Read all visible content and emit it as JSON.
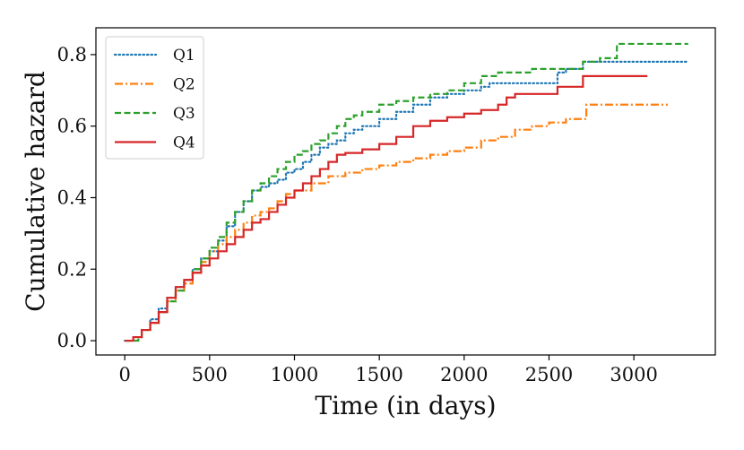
{
  "chart_data": {
    "type": "line",
    "title": "",
    "xlabel": "Time (in days)",
    "ylabel": "Cumulative hazard",
    "xlim": [
      -170,
      3480
    ],
    "ylim": [
      -0.04,
      0.875
    ],
    "xticks": [
      0,
      500,
      1000,
      1500,
      2000,
      2500,
      3000
    ],
    "xtick_labels": [
      "0",
      "500",
      "1000",
      "1500",
      "2000",
      "2500",
      "3000"
    ],
    "yticks": [
      0.0,
      0.2,
      0.4,
      0.6,
      0.8
    ],
    "ytick_labels": [
      "0.0",
      "0.2",
      "0.4",
      "0.6",
      "0.8"
    ],
    "grid": false,
    "legend_position": "top-left",
    "step": true,
    "series": [
      {
        "name": "Q1",
        "color": "#1f77b4",
        "dash": "dotted",
        "x": [
          0,
          50,
          100,
          150,
          200,
          250,
          300,
          350,
          400,
          450,
          500,
          550,
          600,
          650,
          700,
          750,
          800,
          850,
          900,
          950,
          1000,
          1050,
          1100,
          1150,
          1200,
          1250,
          1300,
          1350,
          1400,
          1500,
          1600,
          1700,
          1800,
          1900,
          2000,
          2100,
          2150,
          2300,
          2500,
          2550,
          2600,
          2700,
          3000,
          3320
        ],
        "y": [
          0.0,
          0.01,
          0.03,
          0.06,
          0.09,
          0.12,
          0.15,
          0.17,
          0.2,
          0.23,
          0.25,
          0.28,
          0.32,
          0.36,
          0.39,
          0.42,
          0.43,
          0.44,
          0.45,
          0.47,
          0.48,
          0.5,
          0.52,
          0.54,
          0.55,
          0.56,
          0.58,
          0.59,
          0.6,
          0.62,
          0.64,
          0.66,
          0.68,
          0.69,
          0.7,
          0.71,
          0.72,
          0.72,
          0.72,
          0.75,
          0.76,
          0.78,
          0.78,
          0.78
        ]
      },
      {
        "name": "Q2",
        "color": "#ff7f0e",
        "dash": "dashdot",
        "x": [
          0,
          50,
          100,
          150,
          200,
          250,
          300,
          350,
          400,
          450,
          500,
          550,
          600,
          650,
          700,
          750,
          800,
          850,
          900,
          950,
          1000,
          1100,
          1200,
          1300,
          1400,
          1500,
          1600,
          1700,
          1800,
          1900,
          2000,
          2100,
          2200,
          2300,
          2400,
          2500,
          2600,
          2700,
          2720,
          3000,
          3200
        ],
        "y": [
          0.0,
          0.01,
          0.03,
          0.05,
          0.08,
          0.11,
          0.14,
          0.16,
          0.19,
          0.22,
          0.25,
          0.27,
          0.29,
          0.31,
          0.33,
          0.35,
          0.36,
          0.37,
          0.39,
          0.41,
          0.42,
          0.44,
          0.46,
          0.47,
          0.48,
          0.49,
          0.5,
          0.51,
          0.52,
          0.53,
          0.54,
          0.56,
          0.57,
          0.59,
          0.6,
          0.61,
          0.62,
          0.62,
          0.66,
          0.66,
          0.66
        ]
      },
      {
        "name": "Q3",
        "color": "#2ca02c",
        "dash": "dashed",
        "x": [
          0,
          80,
          100,
          150,
          200,
          250,
          300,
          350,
          400,
          450,
          500,
          550,
          600,
          650,
          700,
          750,
          800,
          850,
          900,
          950,
          1000,
          1050,
          1100,
          1150,
          1200,
          1250,
          1300,
          1350,
          1400,
          1500,
          1600,
          1700,
          1800,
          1900,
          2000,
          2100,
          2200,
          2300,
          2400,
          2500,
          2600,
          2700,
          2800,
          2900,
          3000,
          3320
        ],
        "y": [
          0.0,
          0.01,
          0.03,
          0.05,
          0.08,
          0.11,
          0.14,
          0.17,
          0.2,
          0.23,
          0.26,
          0.29,
          0.33,
          0.36,
          0.39,
          0.42,
          0.44,
          0.46,
          0.48,
          0.5,
          0.52,
          0.53,
          0.55,
          0.56,
          0.58,
          0.6,
          0.62,
          0.63,
          0.64,
          0.66,
          0.67,
          0.68,
          0.69,
          0.7,
          0.72,
          0.74,
          0.75,
          0.75,
          0.76,
          0.76,
          0.76,
          0.78,
          0.79,
          0.83,
          0.83,
          0.83
        ]
      },
      {
        "name": "Q4",
        "color": "#d62728",
        "dash": "solid",
        "x": [
          0,
          50,
          100,
          150,
          200,
          250,
          300,
          350,
          400,
          450,
          500,
          550,
          600,
          650,
          700,
          750,
          800,
          850,
          900,
          950,
          1000,
          1050,
          1100,
          1150,
          1200,
          1250,
          1300,
          1400,
          1500,
          1600,
          1700,
          1800,
          1900,
          2000,
          2100,
          2200,
          2250,
          2300,
          2400,
          2500,
          2550,
          2650,
          2700,
          2800,
          3080
        ],
        "y": [
          0.0,
          0.01,
          0.03,
          0.05,
          0.08,
          0.12,
          0.15,
          0.17,
          0.19,
          0.21,
          0.23,
          0.25,
          0.27,
          0.29,
          0.31,
          0.33,
          0.34,
          0.36,
          0.38,
          0.4,
          0.42,
          0.44,
          0.46,
          0.48,
          0.5,
          0.52,
          0.525,
          0.535,
          0.55,
          0.57,
          0.6,
          0.615,
          0.625,
          0.635,
          0.645,
          0.66,
          0.68,
          0.69,
          0.69,
          0.69,
          0.71,
          0.71,
          0.74,
          0.74,
          0.74
        ]
      }
    ]
  }
}
